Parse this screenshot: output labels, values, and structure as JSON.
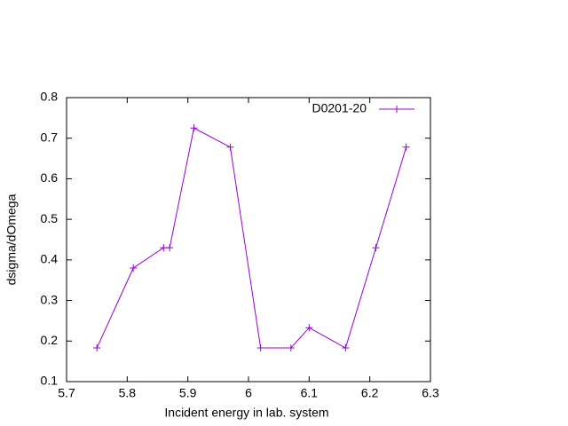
{
  "chart_data": {
    "type": "line",
    "xlabel": "Incident energy in lab. system",
    "ylabel": "dsigma/dOmega",
    "x": [
      5.75,
      5.81,
      5.86,
      5.87,
      5.91,
      5.97,
      6.02,
      6.07,
      6.1,
      6.16,
      6.21,
      6.26
    ],
    "series": [
      {
        "name": "D0201-20",
        "color": "#9400d3",
        "values": [
          0.183,
          0.38,
          0.43,
          0.43,
          0.725,
          0.678,
          0.183,
          0.183,
          0.233,
          0.183,
          0.43,
          0.678
        ]
      }
    ],
    "xlim": [
      5.7,
      6.3
    ],
    "xticks": [
      5.7,
      5.8,
      5.9,
      6,
      6.1,
      6.2,
      6.3
    ],
    "ylim": [
      0.1,
      0.8
    ],
    "yticks": [
      0.1,
      0.2,
      0.3,
      0.4,
      0.5,
      0.6,
      0.7,
      0.8
    ],
    "legend": "top-right",
    "grid": false
  }
}
